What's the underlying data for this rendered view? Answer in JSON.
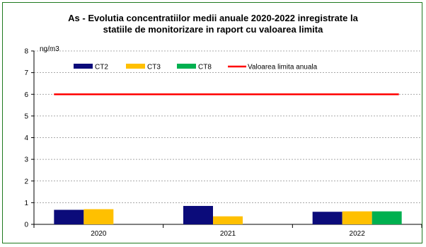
{
  "chart_data": {
    "type": "bar",
    "title_lines": [
      "As - Evolutia concentratiilor medii anuale 2020-2022 inregistrate la",
      "statiile de monitorizare in raport cu valoarea limita"
    ],
    "ylabel": "ng/m3",
    "ylim": [
      0,
      8
    ],
    "yticks": [
      0,
      1,
      2,
      3,
      4,
      5,
      6,
      7,
      8
    ],
    "grid": true,
    "legend_position": "top-left",
    "categories": [
      "2020",
      "2021",
      "2022"
    ],
    "series": [
      {
        "name": "CT2",
        "color": "#0b0b7a",
        "values": [
          0.67,
          0.85,
          0.58
        ]
      },
      {
        "name": "CT3",
        "color": "#ffc000",
        "values": [
          0.7,
          0.37,
          0.6
        ]
      },
      {
        "name": "CT8",
        "color": "#00b050",
        "values": [
          null,
          null,
          0.6
        ]
      }
    ],
    "limit_line": {
      "name": "Valoarea limita anuala",
      "color": "#ff0000",
      "value": 6
    }
  }
}
